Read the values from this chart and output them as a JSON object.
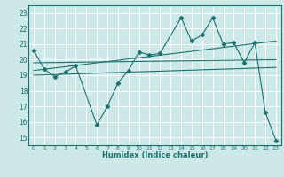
{
  "title": "",
  "xlabel": "Humidex (Indice chaleur)",
  "bg_color": "#cce8e8",
  "line_color": "#1a7070",
  "grid_color": "#ffffff",
  "xlim": [
    -0.5,
    23.5
  ],
  "ylim": [
    14.5,
    23.5
  ],
  "xticks": [
    0,
    1,
    2,
    3,
    4,
    5,
    6,
    7,
    8,
    9,
    10,
    11,
    12,
    13,
    14,
    15,
    16,
    17,
    18,
    19,
    20,
    21,
    22,
    23
  ],
  "yticks": [
    15,
    16,
    17,
    18,
    19,
    20,
    21,
    22,
    23
  ],
  "main_series": {
    "x": [
      0,
      1,
      2,
      3,
      4,
      6,
      7,
      8,
      9,
      10,
      11,
      12,
      14,
      15,
      16,
      17,
      18,
      19,
      20,
      21,
      22,
      23
    ],
    "y": [
      20.6,
      19.4,
      18.9,
      19.2,
      19.6,
      15.8,
      17.0,
      18.5,
      19.3,
      20.5,
      20.3,
      20.4,
      22.7,
      21.2,
      21.6,
      22.7,
      21.0,
      21.1,
      19.8,
      21.1,
      16.6,
      14.8
    ]
  },
  "trend_lines": [
    {
      "x": [
        0,
        23
      ],
      "y": [
        19.0,
        19.5
      ]
    },
    {
      "x": [
        0,
        23
      ],
      "y": [
        19.3,
        21.2
      ]
    },
    {
      "x": [
        0,
        23
      ],
      "y": [
        19.8,
        20.0
      ]
    }
  ]
}
